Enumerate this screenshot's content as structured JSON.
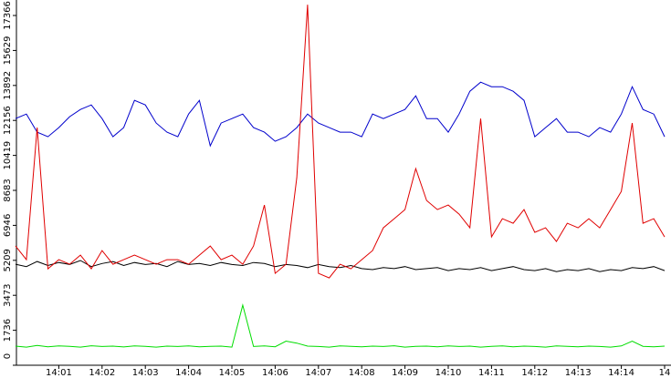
{
  "chart_data": {
    "type": "line",
    "x": [
      null,
      null,
      null,
      null,
      "14:01",
      null,
      null,
      null,
      "14:02",
      null,
      null,
      null,
      "14:03",
      null,
      null,
      null,
      "14:04",
      null,
      null,
      null,
      "14:05",
      null,
      null,
      null,
      "14:06",
      null,
      null,
      null,
      "14:07",
      null,
      null,
      null,
      "14:08",
      null,
      null,
      null,
      "14:09",
      null,
      null,
      null,
      "14:10",
      null,
      null,
      null,
      "14:11",
      null,
      null,
      null,
      "14:12",
      null,
      null,
      null,
      "14:13",
      null,
      null,
      null,
      "14:14",
      null,
      null,
      null,
      "14"
    ],
    "ylim": [
      0,
      18135
    ],
    "yticks": [
      0,
      1736,
      3473,
      5209,
      6946,
      8683,
      10419,
      12156,
      13892,
      15629,
      17366
    ],
    "series": [
      {
        "color": "#0000cc",
        "values": [
          12249,
          12475,
          11571,
          11345,
          11797,
          12340,
          12701,
          12927,
          12249,
          11345,
          11797,
          13153,
          12927,
          12023,
          11571,
          11345,
          12475,
          13153,
          10893,
          12023,
          12249,
          12475,
          11797,
          11571,
          11119,
          11345,
          11797,
          12475,
          12023,
          11797,
          11571,
          11571,
          11345,
          12475,
          12249,
          12475,
          12701,
          13379,
          12249,
          12249,
          11571,
          12475,
          13605,
          14057,
          13831,
          13831,
          13605,
          13153,
          11345,
          11797,
          12249,
          11571,
          11571,
          11345,
          11797,
          11571,
          12475,
          13831,
          12701,
          12475,
          11345
        ]
      },
      {
        "color": "#000000",
        "values": [
          5017,
          4900,
          5150,
          4950,
          5100,
          5000,
          5200,
          4900,
          5050,
          5150,
          4950,
          5100,
          5000,
          5050,
          4900,
          5150,
          5000,
          5050,
          4950,
          5100,
          5000,
          4950,
          5100,
          5050,
          4900,
          5000,
          4950,
          4850,
          5000,
          4900,
          4850,
          4950,
          4800,
          4750,
          4850,
          4800,
          4900,
          4750,
          4800,
          4850,
          4700,
          4800,
          4750,
          4850,
          4700,
          4800,
          4900,
          4750,
          4700,
          4800,
          4650,
          4750,
          4700,
          4800,
          4650,
          4750,
          4700,
          4850,
          4800,
          4900,
          4700
        ]
      },
      {
        "color": "#e00000",
        "values": [
          5921,
          5243,
          11797,
          4791,
          5243,
          5017,
          5469,
          4791,
          5695,
          5017,
          5243,
          5469,
          5243,
          5017,
          5243,
          5243,
          5017,
          5469,
          5921,
          5243,
          5469,
          5017,
          5921,
          7955,
          4565,
          5017,
          9311,
          17899,
          4565,
          4339,
          5017,
          4791,
          5243,
          5695,
          6825,
          7277,
          7729,
          9763,
          8181,
          7729,
          7955,
          7503,
          6825,
          12249,
          6373,
          7277,
          7051,
          7729,
          6599,
          6825,
          6147,
          7051,
          6825,
          7277,
          6825,
          7729,
          8633,
          12023,
          7051,
          7277,
          6373
        ]
      },
      {
        "color": "#00dd00",
        "values": [
          950,
          900,
          980,
          920,
          960,
          940,
          900,
          970,
          930,
          950,
          910,
          960,
          940,
          900,
          950,
          930,
          960,
          920,
          940,
          950,
          900,
          2983,
          930,
          960,
          920,
          1200,
          1100,
          950,
          930,
          900,
          960,
          940,
          920,
          950,
          930,
          970,
          900,
          940,
          950,
          920,
          960,
          930,
          950,
          900,
          940,
          960,
          920,
          950,
          930,
          900,
          960,
          940,
          920,
          950,
          930,
          900,
          960,
          1200,
          940,
          920,
          950
        ]
      }
    ]
  }
}
